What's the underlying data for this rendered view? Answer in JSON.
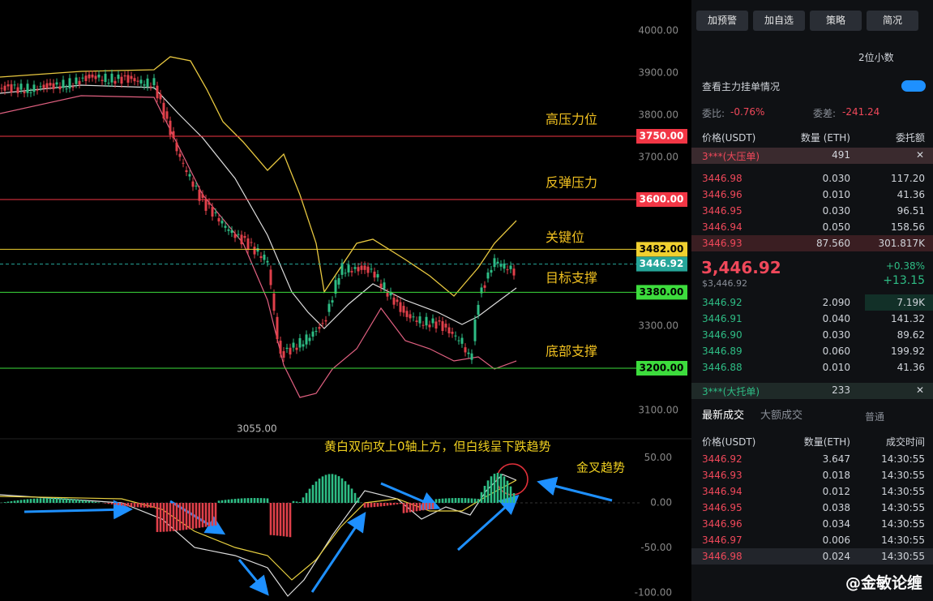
{
  "chart": {
    "price_ticks": [
      "4000.00",
      "3900.00",
      "3800.00",
      "3700.00",
      "3300.00",
      "3100.00"
    ],
    "low_label": "3055.00",
    "levels": [
      {
        "name": "高压力位",
        "price": "3750.00",
        "color": "#f23645"
      },
      {
        "name": "反弹压力",
        "price": "3600.00",
        "color": "#f23645"
      },
      {
        "name": "关键位",
        "price": "3482.00",
        "color": "#f0d030"
      },
      {
        "name": "目标支撑",
        "price": "3380.00",
        "color": "#3ddc3d"
      },
      {
        "name": "底部支撑",
        "price": "3200.00",
        "color": "#3ddc3d"
      }
    ],
    "current_price": "3446.92",
    "macd_ticks": [
      "50.00",
      "0.00",
      "-50.00",
      "-100.00"
    ],
    "annotations": [
      "黄白双向攻上0轴上方，但白线呈下跌趋势",
      "金叉趋势"
    ]
  },
  "panel": {
    "buttons": [
      "加预警",
      "加自选",
      "策略",
      "简况"
    ],
    "decimals": "2位小数",
    "main_orders": "查看主力挂单情况",
    "ratio_label": "委比:",
    "ratio": "-0.76%",
    "diff_label": "委差:",
    "diff": "-241.24",
    "book_headers": [
      "价格(USDT)",
      "数量 (ETH)",
      "委托额"
    ],
    "big_ask": {
      "name": "3***(大压单)",
      "qty": "491"
    },
    "asks": [
      [
        "3446.98",
        "0.030",
        "117.20"
      ],
      [
        "3446.96",
        "0.010",
        "41.36"
      ],
      [
        "3446.95",
        "0.030",
        "96.51"
      ],
      [
        "3446.94",
        "0.050",
        "158.56"
      ],
      [
        "3446.93",
        "87.560",
        "301.817K"
      ]
    ],
    "last": "3,446.92",
    "last_usd": "$3,446.92",
    "change_pct": "+0.38%",
    "change": "+13.15",
    "bids": [
      [
        "3446.92",
        "2.090",
        "7.19K"
      ],
      [
        "3446.91",
        "0.040",
        "141.32"
      ],
      [
        "3446.90",
        "0.030",
        "89.62"
      ],
      [
        "3446.89",
        "0.060",
        "199.92"
      ],
      [
        "3446.88",
        "0.010",
        "41.36"
      ]
    ],
    "big_bid": {
      "name": "3***(大托单)",
      "qty": "233"
    },
    "tabs": [
      "最新成交",
      "大额成交"
    ],
    "normal": "普通",
    "trade_headers": [
      "价格(USDT)",
      "数量(ETH)",
      "成交时间"
    ],
    "trades": [
      [
        "3446.92",
        "3.647",
        "14:30:55"
      ],
      [
        "3446.93",
        "0.018",
        "14:30:55"
      ],
      [
        "3446.94",
        "0.012",
        "14:30:55"
      ],
      [
        "3446.95",
        "0.038",
        "14:30:55"
      ],
      [
        "3446.96",
        "0.034",
        "14:30:55"
      ],
      [
        "3446.97",
        "0.006",
        "14:30:55"
      ],
      [
        "3446.98",
        "0.024",
        "14:30:55"
      ]
    ],
    "watermark": "@金敏论缠"
  }
}
